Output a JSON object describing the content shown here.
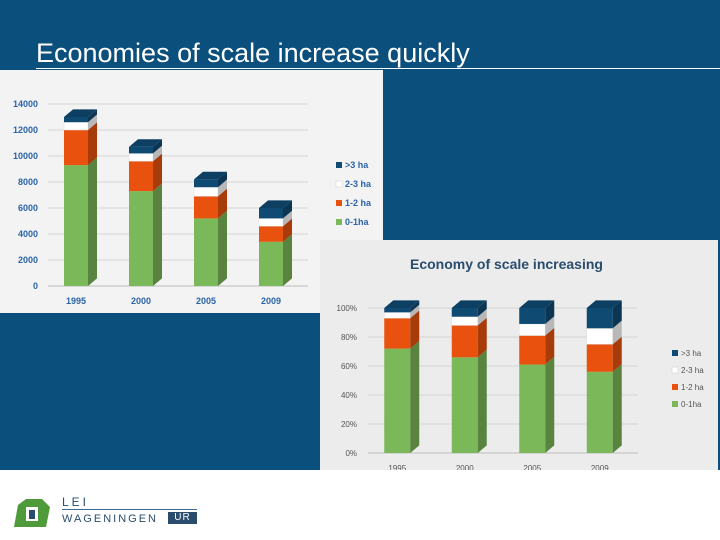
{
  "slide": {
    "title": "Economies of scale increase quickly",
    "logo": {
      "lei": "LEI",
      "wageningen": "WAGENINGEN",
      "ur": "UR"
    }
  },
  "colors": {
    "background": "#0b4f7d",
    "gt3": "#0f4a73",
    "2to3": "#ffffff",
    "1to2": "#e8520e",
    "0to1": "#7bb859"
  },
  "chart_data": [
    {
      "type": "bar",
      "stacked": true,
      "title": "",
      "categories": [
        "1995",
        "2000",
        "2005",
        "2009"
      ],
      "ylim": [
        0,
        14000
      ],
      "yticks": [
        "0",
        "2000",
        "4000",
        "6000",
        "8000",
        "10000",
        "12000",
        "14000"
      ],
      "legend_position": "right",
      "series": [
        {
          "name": "0-1ha",
          "color": "#7bb859",
          "values": [
            9300,
            7300,
            5200,
            3400
          ]
        },
        {
          "name": "1-2 ha",
          "color": "#e8520e",
          "values": [
            2700,
            2300,
            1700,
            1200
          ]
        },
        {
          "name": "2-3 ha",
          "color": "#ffffff",
          "values": [
            600,
            600,
            700,
            600
          ]
        },
        {
          "name": ">3 ha",
          "color": "#0f4a73",
          "values": [
            400,
            500,
            600,
            800
          ]
        }
      ]
    },
    {
      "type": "bar",
      "stacked": true,
      "title": "Economy of scale increasing",
      "categories": [
        "1995",
        "2000",
        "2005",
        "2009"
      ],
      "ylim": [
        0,
        100
      ],
      "yticks": [
        "0%",
        "20%",
        "40%",
        "60%",
        "80%",
        "100%"
      ],
      "legend_position": "right",
      "series": [
        {
          "name": "0-1ha",
          "color": "#7bb859",
          "values": [
            72,
            66,
            61,
            56
          ]
        },
        {
          "name": "1-2 ha",
          "color": "#e8520e",
          "values": [
            21,
            22,
            20,
            19
          ]
        },
        {
          "name": "2-3 ha",
          "color": "#ffffff",
          "values": [
            4,
            6,
            8,
            11
          ]
        },
        {
          "name": ">3 ha",
          "color": "#0f4a73",
          "values": [
            3,
            6,
            11,
            14
          ]
        }
      ]
    }
  ]
}
